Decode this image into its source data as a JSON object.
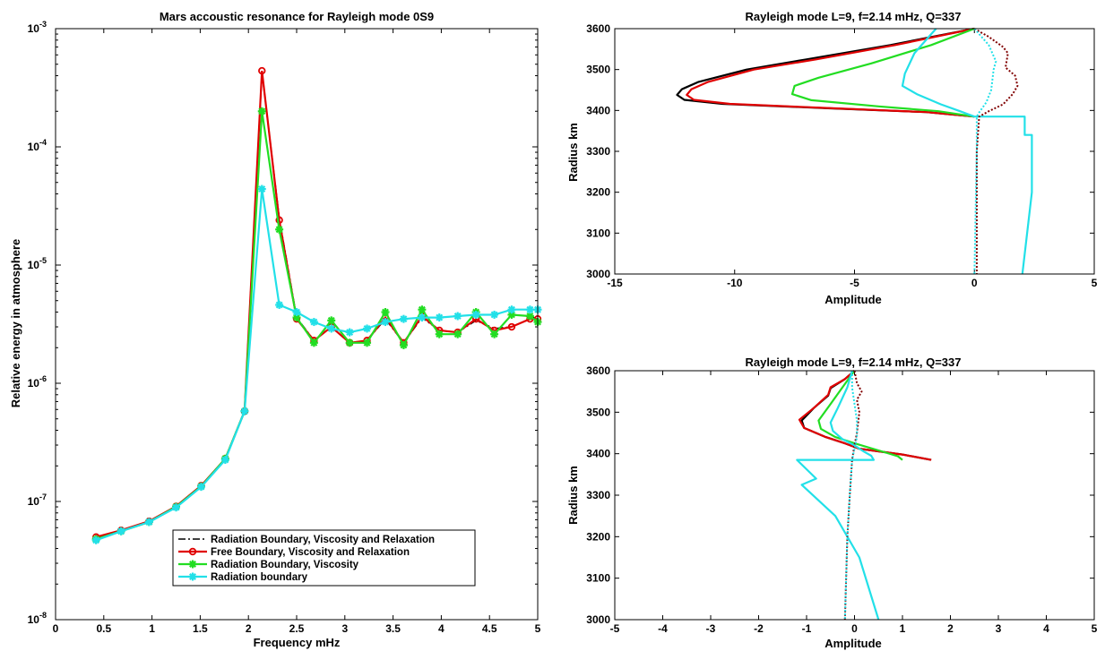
{
  "chart_data": [
    {
      "id": "left",
      "type": "line",
      "title": "Mars accoustic resonance for Rayleigh mode 0S9",
      "xlabel": "Frequency mHz",
      "ylabel": "Relative energy in atmosphere",
      "xlim": [
        0,
        5
      ],
      "ylim": [
        1e-08,
        0.001
      ],
      "yscale": "log",
      "xticks": [
        "0",
        "0.5",
        "1",
        "1.5",
        "2",
        "2.5",
        "3",
        "3.5",
        "4",
        "4.5",
        "5"
      ],
      "yticks": [
        {
          "base": "10",
          "exp": "-8"
        },
        {
          "base": "10",
          "exp": "-7"
        },
        {
          "base": "10",
          "exp": "-6"
        },
        {
          "base": "10",
          "exp": "-5"
        },
        {
          "base": "10",
          "exp": "-4"
        },
        {
          "base": "10",
          "exp": "-3"
        }
      ],
      "grid": false,
      "legend_position": "bottom-right",
      "x": [
        0.42,
        0.68,
        0.97,
        1.25,
        1.51,
        1.76,
        1.96,
        2.14,
        2.32,
        2.5,
        2.68,
        2.86,
        3.05,
        3.23,
        3.42,
        3.61,
        3.8,
        3.98,
        4.17,
        4.36,
        4.55,
        4.73,
        4.92,
        5.0
      ],
      "series": [
        {
          "name": "Radiation Boundary, Viscosity and Relaxation",
          "color": "#000000",
          "dash": "8,3,2,3",
          "marker": "none",
          "values": [
            4.9e-08,
            5.6e-08,
            6.7e-08,
            9e-08,
            1.35e-07,
            2.3e-07,
            5.8e-07,
            0.00043,
            2.5e-05,
            3.6e-06,
            2.3e-06,
            3e-06,
            2.2e-06,
            2.3e-06,
            3.5e-06,
            2.2e-06,
            3.6e-06,
            2.8e-06,
            2.7e-06,
            3.4e-06,
            2.9e-06,
            3e-06,
            3.5e-06,
            3.7e-06
          ]
        },
        {
          "name": "Free Boundary, Viscosity and Relaxation",
          "color": "#e00000",
          "dash": "",
          "marker": "circle",
          "values": [
            5e-08,
            5.7e-08,
            6.8e-08,
            9.1e-08,
            1.36e-07,
            2.3e-07,
            5.8e-07,
            0.00044,
            2.4e-05,
            3.5e-06,
            2.3e-06,
            3e-06,
            2.2e-06,
            2.3e-06,
            3.6e-06,
            2.2e-06,
            3.7e-06,
            2.8e-06,
            2.7e-06,
            3.5e-06,
            2.8e-06,
            3e-06,
            3.5e-06,
            3.5e-06
          ]
        },
        {
          "name": "Radiation Boundary, Viscosity",
          "color": "#22dd22",
          "dash": "",
          "marker": "star",
          "values": [
            4.8e-08,
            5.6e-08,
            6.7e-08,
            9e-08,
            1.34e-07,
            2.3e-07,
            5.8e-07,
            0.0002,
            2e-05,
            3.6e-06,
            2.2e-06,
            3.4e-06,
            2.2e-06,
            2.2e-06,
            4e-06,
            2.1e-06,
            4.2e-06,
            2.6e-06,
            2.6e-06,
            4e-06,
            2.6e-06,
            3.8e-06,
            3.7e-06,
            3.3e-06
          ]
        },
        {
          "name": "Radiation boundary",
          "color": "#22e0e8",
          "dash": "",
          "marker": "star",
          "values": [
            4.7e-08,
            5.6e-08,
            6.7e-08,
            8.9e-08,
            1.33e-07,
            2.25e-07,
            5.8e-07,
            4.4e-05,
            4.6e-06,
            4e-06,
            3.3e-06,
            2.9e-06,
            2.7e-06,
            2.9e-06,
            3.3e-06,
            3.5e-06,
            3.6e-06,
            3.6e-06,
            3.7e-06,
            3.8e-06,
            3.8e-06,
            4.2e-06,
            4.2e-06,
            4.2e-06
          ]
        }
      ]
    },
    {
      "id": "top-right",
      "type": "line",
      "title": "Rayleigh mode L=9, f=2.14 mHz, Q=337",
      "xlabel": "Amplitude",
      "ylabel": "Radius km",
      "xlim": [
        -15,
        5
      ],
      "ylim": [
        3000,
        3600
      ],
      "xticks": [
        "-15",
        "-10",
        "-5",
        "0",
        "5"
      ],
      "yticks": [
        "3000",
        "3100",
        "3200",
        "3300",
        "3400",
        "3500",
        "3600"
      ],
      "grid": false,
      "series": [
        {
          "color": "#000000",
          "style": "solid",
          "points": [
            [
              0.0,
              3600
            ],
            [
              -3.5,
              3560
            ],
            [
              -7,
              3525
            ],
            [
              -9.5,
              3500
            ],
            [
              -11.5,
              3470
            ],
            [
              -12.2,
              3452
            ],
            [
              -12.4,
              3438
            ],
            [
              -12.1,
              3426
            ],
            [
              -10.5,
              3416
            ],
            [
              -6,
              3405
            ],
            [
              -2,
              3396
            ],
            [
              0.0,
              3385
            ]
          ]
        },
        {
          "color": "#e00000",
          "style": "solid",
          "points": [
            [
              0.0,
              3600
            ],
            [
              -3.3,
              3560
            ],
            [
              -6.6,
              3525
            ],
            [
              -9.2,
              3500
            ],
            [
              -11.1,
              3470
            ],
            [
              -11.8,
              3452
            ],
            [
              -12.0,
              3438
            ],
            [
              -11.7,
              3426
            ],
            [
              -10.2,
              3416
            ],
            [
              -5.8,
              3405
            ],
            [
              -2,
              3396
            ],
            [
              0.0,
              3385
            ]
          ]
        },
        {
          "color": "#22dd22",
          "style": "solid",
          "points": [
            [
              0.0,
              3600
            ],
            [
              -1.8,
              3560
            ],
            [
              -4.3,
              3515
            ],
            [
              -6.5,
              3480
            ],
            [
              -7.5,
              3460
            ],
            [
              -7.6,
              3440
            ],
            [
              -6.8,
              3425
            ],
            [
              -4,
              3410
            ],
            [
              -1.5,
              3398
            ],
            [
              0.0,
              3385
            ]
          ]
        },
        {
          "color": "#22e0e8",
          "style": "solid",
          "points": [
            [
              -1.6,
              3600
            ],
            [
              -1.9,
              3580
            ],
            [
              -2.5,
              3540
            ],
            [
              -2.9,
              3490
            ],
            [
              -3.0,
              3460
            ],
            [
              -2.4,
              3440
            ],
            [
              -1.4,
              3415
            ],
            [
              -0.6,
              3398
            ],
            [
              0.0,
              3385
            ],
            [
              2.1,
              3385
            ],
            [
              2.1,
              3340
            ],
            [
              2.4,
              3340
            ],
            [
              2.4,
              3200
            ],
            [
              2.0,
              3000
            ]
          ]
        },
        {
          "color": "#800000",
          "style": "dotted",
          "points": [
            [
              0.0,
              3600
            ],
            [
              0.6,
              3580
            ],
            [
              1.2,
              3555
            ],
            [
              1.4,
              3540
            ],
            [
              1.3,
              3505
            ],
            [
              1.7,
              3485
            ],
            [
              1.8,
              3460
            ],
            [
              1.6,
              3440
            ],
            [
              1.2,
              3415
            ],
            [
              0.6,
              3398
            ],
            [
              0.2,
              3385
            ],
            [
              0.1,
              3300
            ],
            [
              0.1,
              3000
            ]
          ]
        },
        {
          "color": "#22e0e8",
          "style": "dotted",
          "points": [
            [
              0.0,
              3600
            ],
            [
              0.6,
              3560
            ],
            [
              0.9,
              3520
            ],
            [
              0.8,
              3500
            ],
            [
              0.7,
              3450
            ],
            [
              0.5,
              3420
            ],
            [
              0.2,
              3395
            ],
            [
              0.1,
              3385
            ],
            [
              0.1,
              3300
            ],
            [
              0.0,
              3000
            ]
          ]
        }
      ]
    },
    {
      "id": "bottom-right",
      "type": "line",
      "title": "Rayleigh mode L=9, f=2.14 mHz, Q=337",
      "xlabel": "Amplitude",
      "ylabel": "Radius km",
      "xlim": [
        -5,
        5
      ],
      "ylim": [
        3000,
        3600
      ],
      "xticks": [
        "-5",
        "-4",
        "-3",
        "-2",
        "-1",
        "0",
        "1",
        "2",
        "3",
        "4",
        "5"
      ],
      "yticks": [
        "3000",
        "3100",
        "3200",
        "3300",
        "3400",
        "3500",
        "3600"
      ],
      "grid": false,
      "series": [
        {
          "color": "#000000",
          "style": "solid",
          "points": [
            [
              0.0,
              3600
            ],
            [
              -0.2,
              3580
            ],
            [
              -0.5,
              3558
            ],
            [
              -0.55,
              3540
            ],
            [
              -0.85,
              3510
            ],
            [
              -1.1,
              3480
            ],
            [
              -1.05,
              3462
            ],
            [
              -0.6,
              3440
            ],
            [
              -0.2,
              3425
            ],
            [
              0.1,
              3412
            ],
            [
              1.0,
              3398
            ],
            [
              1.6,
              3385
            ]
          ]
        },
        {
          "color": "#e00000",
          "style": "solid",
          "points": [
            [
              0.0,
              3600
            ],
            [
              -0.2,
              3580
            ],
            [
              -0.5,
              3560
            ],
            [
              -0.55,
              3542
            ],
            [
              -0.85,
              3510
            ],
            [
              -1.15,
              3482
            ],
            [
              -1.05,
              3462
            ],
            [
              -0.6,
              3440
            ],
            [
              -0.2,
              3425
            ],
            [
              0.1,
              3412
            ],
            [
              1.0,
              3398
            ],
            [
              1.6,
              3385
            ]
          ]
        },
        {
          "color": "#22dd22",
          "style": "solid",
          "points": [
            [
              0.0,
              3600
            ],
            [
              -0.25,
              3560
            ],
            [
              -0.5,
              3520
            ],
            [
              -0.75,
              3480
            ],
            [
              -0.7,
              3460
            ],
            [
              -0.4,
              3440
            ],
            [
              0.0,
              3425
            ],
            [
              0.5,
              3408
            ],
            [
              0.9,
              3394
            ],
            [
              1.0,
              3385
            ]
          ]
        },
        {
          "color": "#22e0e8",
          "style": "solid",
          "points": [
            [
              -0.05,
              3600
            ],
            [
              -0.15,
              3560
            ],
            [
              -0.35,
              3510
            ],
            [
              -0.5,
              3475
            ],
            [
              -0.45,
              3455
            ],
            [
              -0.25,
              3435
            ],
            [
              0.0,
              3420
            ],
            [
              0.2,
              3405
            ],
            [
              0.35,
              3395
            ],
            [
              0.4,
              3385
            ],
            [
              -1.2,
              3385
            ],
            [
              -0.8,
              3340
            ],
            [
              -1.1,
              3325
            ],
            [
              -0.4,
              3250
            ],
            [
              0.1,
              3150
            ],
            [
              0.5,
              3000
            ]
          ]
        },
        {
          "color": "#800000",
          "style": "dotted",
          "points": [
            [
              0.0,
              3600
            ],
            [
              0.05,
              3570
            ],
            [
              0.15,
              3550
            ],
            [
              0.05,
              3530
            ],
            [
              0.1,
              3500
            ],
            [
              0.05,
              3450
            ],
            [
              0.0,
              3420
            ],
            [
              -0.05,
              3385
            ],
            [
              -0.1,
              3300
            ],
            [
              -0.15,
              3200
            ],
            [
              -0.2,
              3000
            ]
          ]
        },
        {
          "color": "#22e0e8",
          "style": "dotted",
          "points": [
            [
              -0.05,
              3600
            ],
            [
              -0.05,
              3560
            ],
            [
              0.0,
              3520
            ],
            [
              0.05,
              3480
            ],
            [
              0.05,
              3440
            ],
            [
              -0.05,
              3385
            ],
            [
              -0.1,
              3300
            ],
            [
              -0.15,
              3200
            ],
            [
              -0.2,
              3000
            ]
          ]
        }
      ]
    }
  ]
}
